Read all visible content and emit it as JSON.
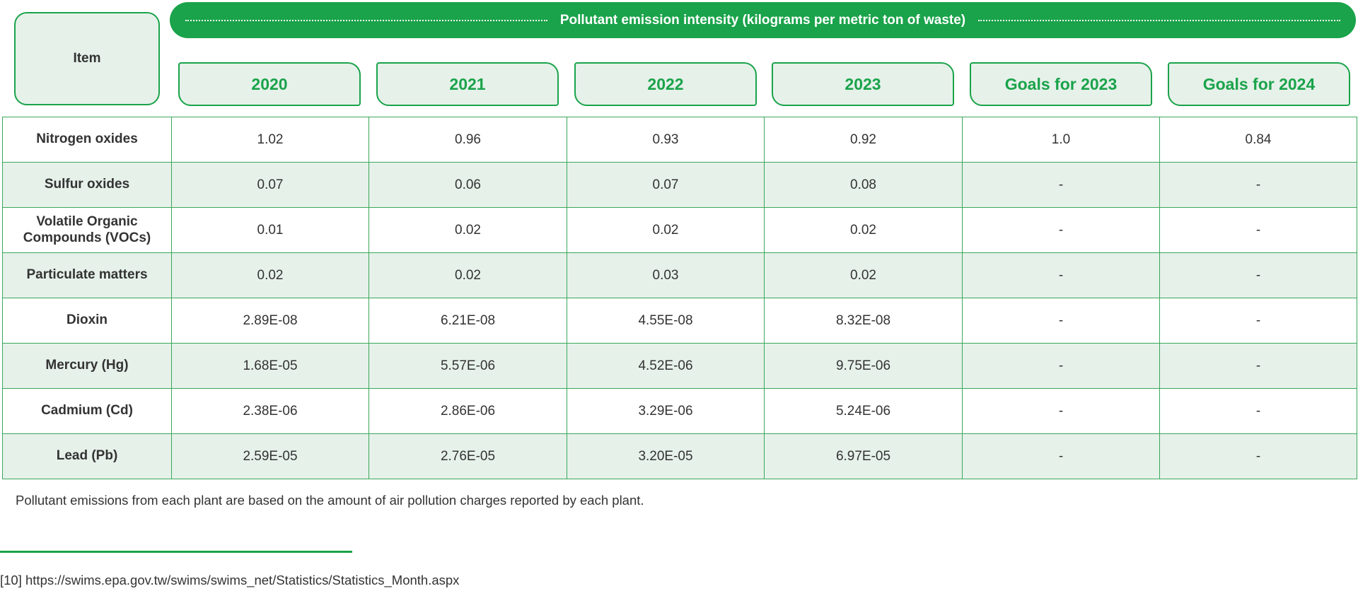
{
  "header": {
    "item_label": "Item",
    "banner_title": "Pollutant emission intensity (kilograms per metric ton of waste)",
    "columns": [
      "2020",
      "2021",
      "2022",
      "2023",
      "Goals for 2023",
      "Goals for 2024"
    ]
  },
  "rows": [
    {
      "item": "Nitrogen oxides",
      "values": [
        "1.02",
        "0.96",
        "0.93",
        "0.92",
        "1.0",
        "0.84"
      ]
    },
    {
      "item": "Sulfur oxides",
      "values": [
        "0.07",
        "0.06",
        "0.07",
        "0.08",
        "-",
        "-"
      ]
    },
    {
      "item": "Volatile Organic Compounds (VOCs)",
      "values": [
        "0.01",
        "0.02",
        "0.02",
        "0.02",
        "-",
        "-"
      ]
    },
    {
      "item": "Particulate matters",
      "values": [
        "0.02",
        "0.02",
        "0.03",
        "0.02",
        "-",
        "-"
      ]
    },
    {
      "item": "Dioxin",
      "values": [
        "2.89E-08",
        "6.21E-08",
        "4.55E-08",
        "8.32E-08",
        "-",
        "-"
      ]
    },
    {
      "item": "Mercury (Hg)",
      "values": [
        "1.68E-05",
        "5.57E-06",
        "4.52E-06",
        "9.75E-06",
        "-",
        "-"
      ]
    },
    {
      "item": "Cadmium (Cd)",
      "values": [
        "2.38E-06",
        "2.86E-06",
        "3.29E-06",
        "5.24E-06",
        "-",
        "-"
      ]
    },
    {
      "item": "Lead (Pb)",
      "values": [
        "2.59E-05",
        "2.76E-05",
        "3.20E-05",
        "6.97E-05",
        "-",
        "-"
      ]
    }
  ],
  "note": "Pollutant emissions from each plant are based on the amount of air pollution charges reported by each plant.",
  "footnote": "[10] https://swims.epa.gov.tw/swims/swims_net/Statistics/Statistics_Month.aspx",
  "colors": {
    "accent": "#1aa34a",
    "shade": "#e6f1ea"
  }
}
